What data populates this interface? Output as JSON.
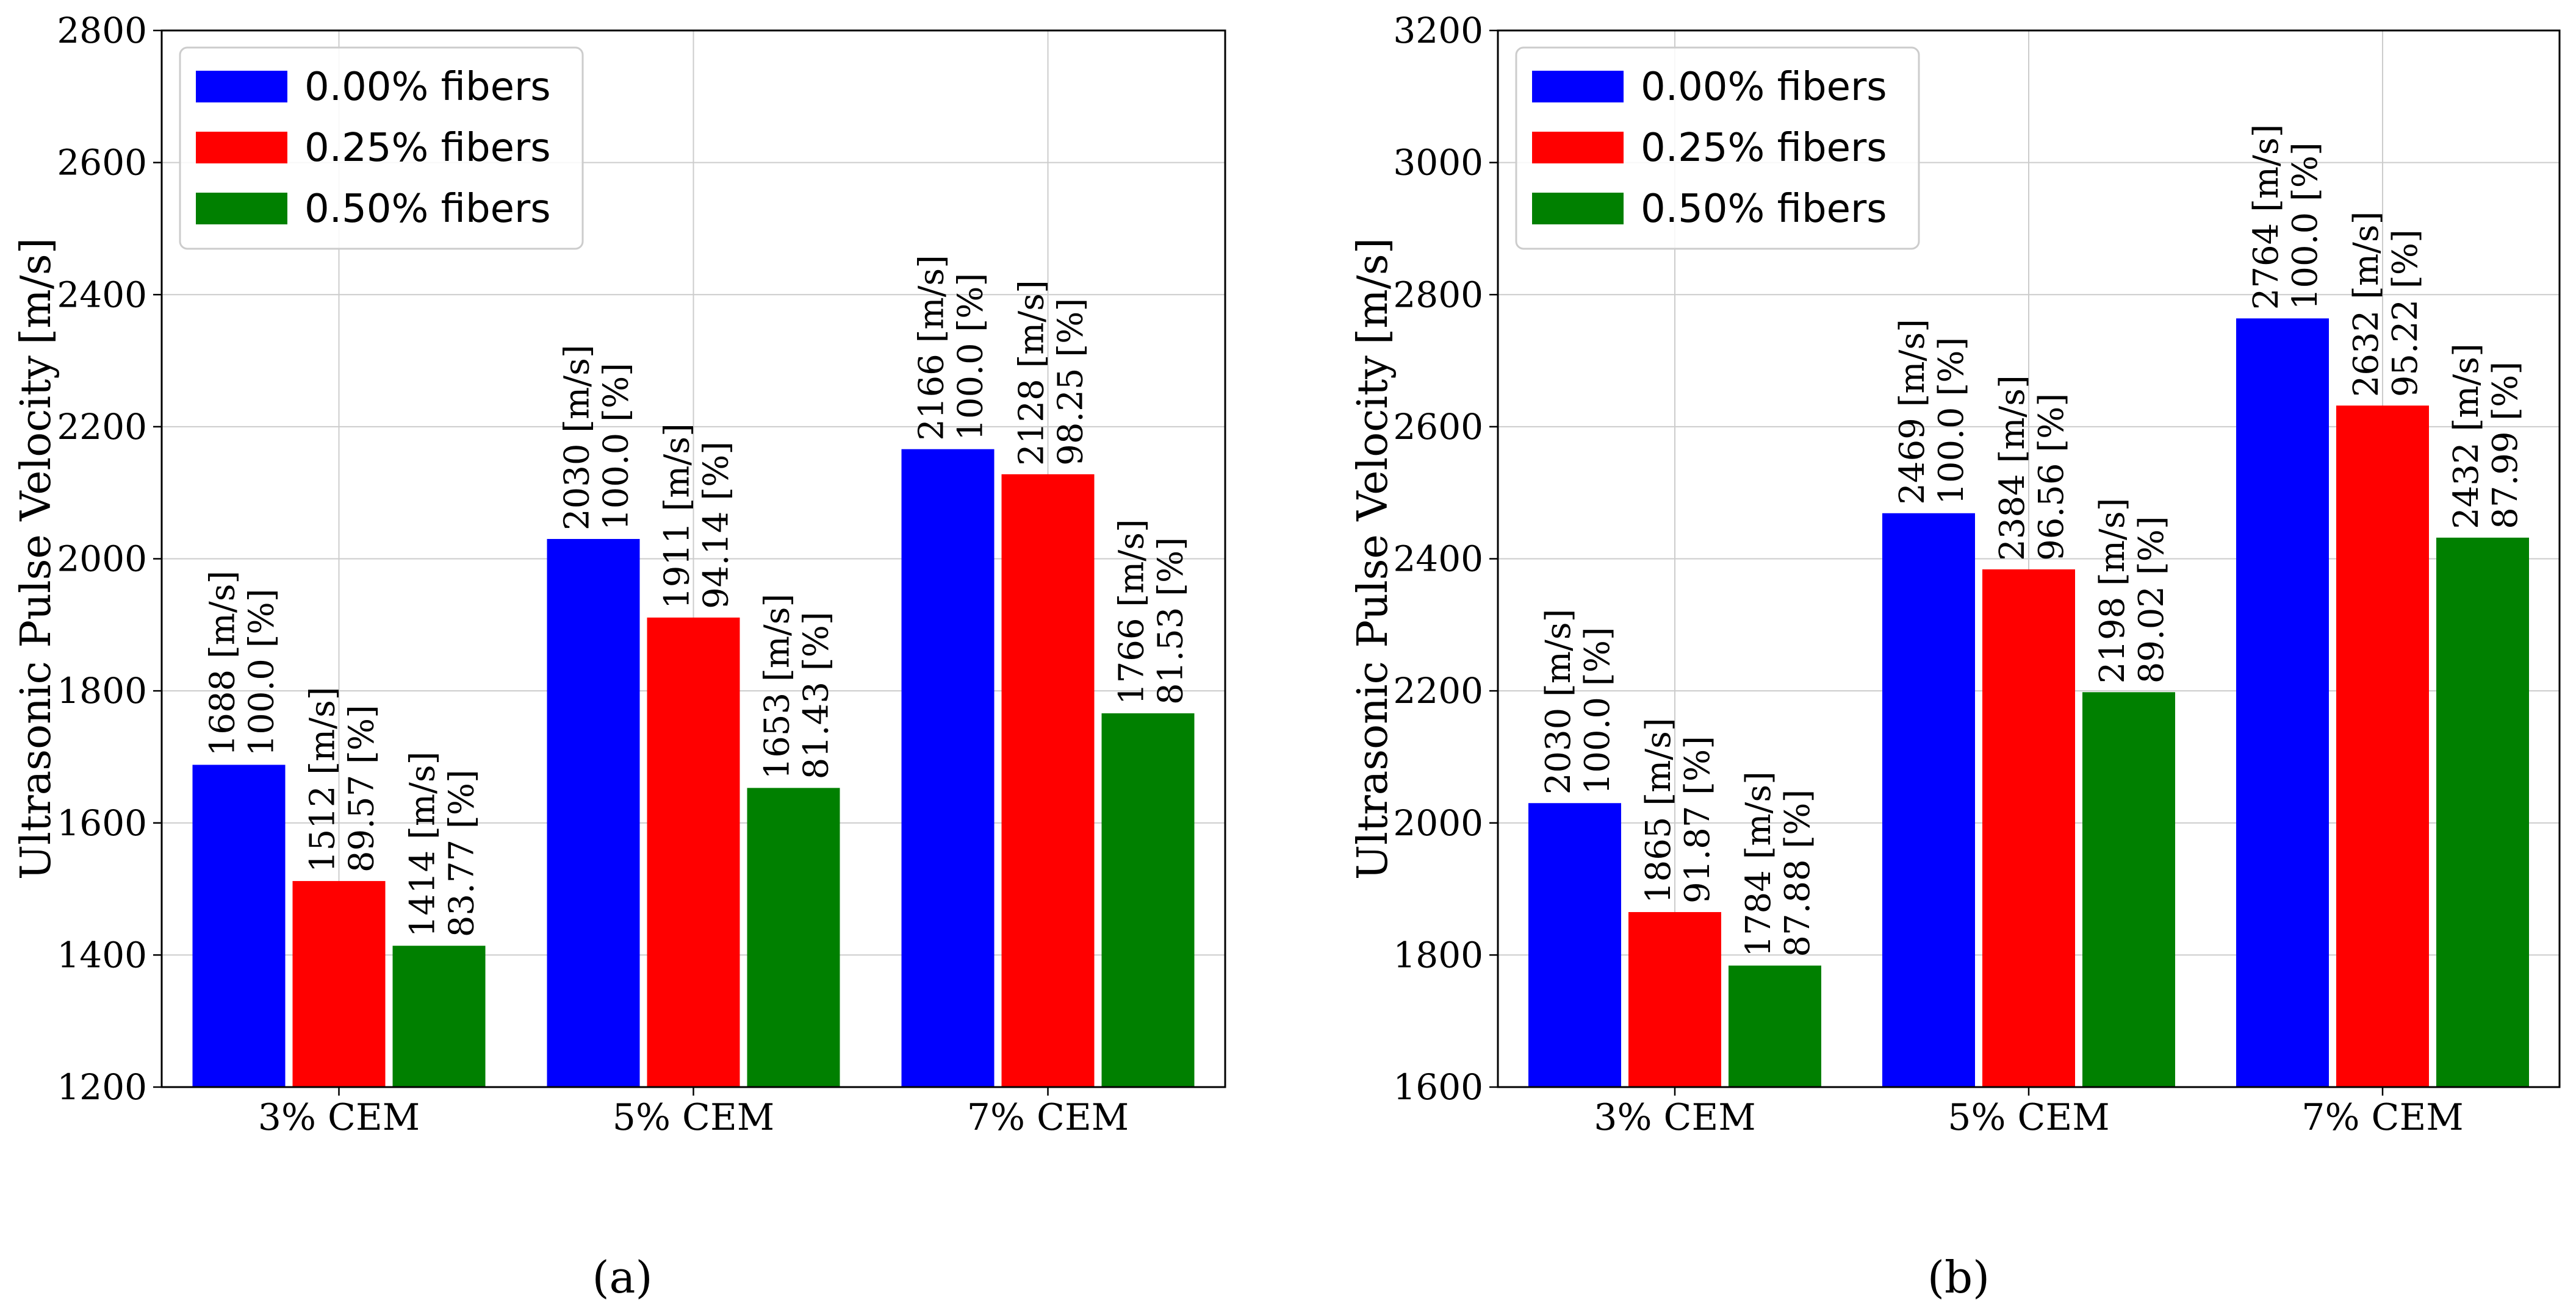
{
  "chart_data": [
    {
      "type": "bar",
      "panel_label": "(a)",
      "ylabel": "Ultrasonic Pulse Velocity",
      "ylabel_unit": "[m/s]",
      "ylim": [
        1200,
        2800
      ],
      "yticks": [
        1200,
        1400,
        1600,
        1800,
        2000,
        2200,
        2400,
        2600,
        2800
      ],
      "grid": true,
      "legend_position": "top-left",
      "categories": [
        "3% CEM",
        "5% CEM",
        "7% CEM"
      ],
      "series": [
        {
          "name": "0.00% fibers",
          "color": "#0000ff",
          "values": [
            1688,
            2030,
            2166
          ],
          "labels": [
            [
              "1688 [m/s]",
              "100.0 [%]"
            ],
            [
              "2030 [m/s]",
              "100.0 [%]"
            ],
            [
              "2166 [m/s]",
              "100.0 [%]"
            ]
          ]
        },
        {
          "name": "0.25% fibers",
          "color": "#ff0000",
          "values": [
            1512,
            1911,
            2128
          ],
          "labels": [
            [
              "1512 [m/s]",
              "89.57 [%]"
            ],
            [
              "1911 [m/s]",
              "94.14 [%]"
            ],
            [
              "2128 [m/s]",
              "98.25 [%]"
            ]
          ]
        },
        {
          "name": "0.50% fibers",
          "color": "#008000",
          "values": [
            1414,
            1653,
            1766
          ],
          "labels": [
            [
              "1414 [m/s]",
              "83.77 [%]"
            ],
            [
              "1653 [m/s]",
              "81.43 [%]"
            ],
            [
              "1766 [m/s]",
              "81.53 [%]"
            ]
          ]
        }
      ]
    },
    {
      "type": "bar",
      "panel_label": "(b)",
      "ylabel": "Ultrasonic Pulse Velocity",
      "ylabel_unit": "[m/s]",
      "ylim": [
        1600,
        3200
      ],
      "yticks": [
        1600,
        1800,
        2000,
        2200,
        2400,
        2600,
        2800,
        3000,
        3200
      ],
      "grid": true,
      "legend_position": "top-left",
      "categories": [
        "3% CEM",
        "5% CEM",
        "7% CEM"
      ],
      "series": [
        {
          "name": "0.00% fibers",
          "color": "#0000ff",
          "values": [
            2030,
            2469,
            2764
          ],
          "labels": [
            [
              "2030 [m/s]",
              "100.0 [%]"
            ],
            [
              "2469 [m/s]",
              "100.0 [%]"
            ],
            [
              "2764 [m/s]",
              "100.0 [%]"
            ]
          ]
        },
        {
          "name": "0.25% fibers",
          "color": "#ff0000",
          "values": [
            1865,
            2384,
            2632
          ],
          "labels": [
            [
              "1865 [m/s]",
              "91.87 [%]"
            ],
            [
              "2384 [m/s]",
              "96.56 [%]"
            ],
            [
              "2632 [m/s]",
              "95.22 [%]"
            ]
          ]
        },
        {
          "name": "0.50% fibers",
          "color": "#008000",
          "values": [
            1784,
            2198,
            2432
          ],
          "labels": [
            [
              "1784 [m/s]",
              "87.88 [%]"
            ],
            [
              "2198 [m/s]",
              "89.02 [%]"
            ],
            [
              "2432 [m/s]",
              "87.99 [%]"
            ]
          ]
        }
      ]
    }
  ]
}
